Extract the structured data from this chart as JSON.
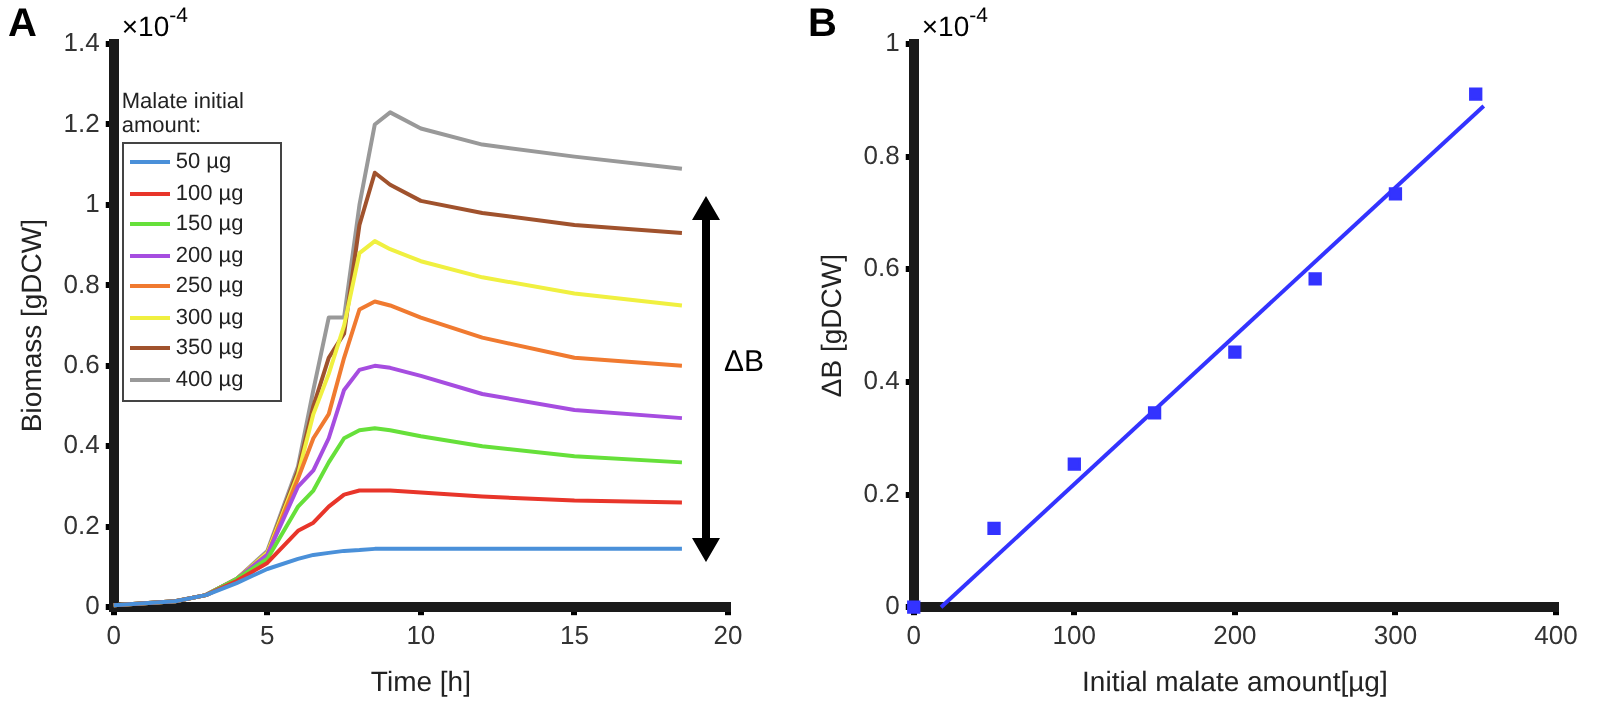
{
  "chart_data": [
    {
      "type": "line",
      "xlabel": "Time [h]",
      "ylabel": "Biomass [gDCW]",
      "legend_title": "Malate initial amount:",
      "legend": "top left",
      "marker": "none",
      "grid": false,
      "annotations": [
        "A",
        "×10$^{-4}$",
        "ΔB"
      ],
      "x": [
        0,
        2,
        3,
        4,
        5,
        6,
        6.5,
        7,
        7.5,
        8,
        8.5,
        9,
        10,
        12,
        15,
        18.5
      ],
      "xlim": [
        0,
        20
      ],
      "xticks": [
        0,
        5,
        10,
        15,
        20
      ],
      "ylim": [
        0,
        1.4
      ],
      "yticks": [
        0,
        0.2,
        0.4,
        0.6,
        0.8,
        1,
        1.2,
        1.4
      ],
      "series": [
        {
          "name": "50 µg",
          "color": "#4a90d9",
          "values": [
            0.005,
            0.015,
            0.03,
            0.06,
            0.095,
            0.12,
            0.13,
            0.135,
            0.14,
            0.142,
            0.145,
            0.145,
            0.145,
            0.145,
            0.145,
            0.145
          ]
        },
        {
          "name": "100 µg",
          "color": "#e8352a",
          "values": [
            0.005,
            0.015,
            0.03,
            0.065,
            0.11,
            0.19,
            0.21,
            0.25,
            0.28,
            0.29,
            0.29,
            0.29,
            0.285,
            0.275,
            0.265,
            0.26
          ]
        },
        {
          "name": "150 µg",
          "color": "#66e03a",
          "values": [
            0.005,
            0.015,
            0.03,
            0.07,
            0.12,
            0.25,
            0.29,
            0.36,
            0.42,
            0.44,
            0.445,
            0.44,
            0.425,
            0.4,
            0.375,
            0.36
          ]
        },
        {
          "name": "200 µg",
          "color": "#a64de0",
          "values": [
            null,
            null,
            0.03,
            0.07,
            0.13,
            0.3,
            0.34,
            0.42,
            0.54,
            0.59,
            0.6,
            0.595,
            0.575,
            0.53,
            0.49,
            0.47
          ]
        },
        {
          "name": "250 µg",
          "color": "#f07a30",
          "values": [
            0.005,
            0.015,
            0.03,
            0.07,
            0.13,
            0.32,
            0.42,
            0.48,
            0.62,
            0.74,
            0.76,
            0.75,
            0.72,
            0.67,
            0.62,
            0.6
          ]
        },
        {
          "name": "300 µg",
          "color": "#f0f040",
          "values": [
            null,
            null,
            0.03,
            0.07,
            0.135,
            0.33,
            0.48,
            0.58,
            0.7,
            0.88,
            0.91,
            0.89,
            0.86,
            0.82,
            0.78,
            0.75
          ]
        },
        {
          "name": "350 µg",
          "color": "#a0522d",
          "values": [
            0.005,
            0.015,
            0.03,
            0.07,
            0.135,
            0.34,
            0.5,
            0.62,
            0.68,
            0.95,
            1.08,
            1.05,
            1.01,
            0.98,
            0.95,
            0.93
          ]
        },
        {
          "name": "400 µg",
          "color": "#999999",
          "values": [
            0.005,
            0.015,
            0.03,
            0.07,
            0.14,
            0.35,
            0.54,
            0.72,
            0.72,
            1.0,
            1.2,
            1.23,
            1.19,
            1.15,
            1.12,
            1.09
          ]
        }
      ]
    },
    {
      "type": "scatter",
      "xlabel": "Initial malate amount[µg]",
      "ylabel": "ΔB [gDCW]",
      "marker": "square",
      "grid": false,
      "annotations": [
        "B",
        "×10$^{-4}$"
      ],
      "x": [
        0,
        50,
        100,
        150,
        200,
        250,
        300,
        350
      ],
      "xlim": [
        0,
        400
      ],
      "xticks": [
        0,
        100,
        200,
        300,
        400
      ],
      "ylim": [
        0,
        1
      ],
      "yticks": [
        0,
        0.2,
        0.4,
        0.6,
        0.8,
        1
      ],
      "series": [
        {
          "color": "#3333ff",
          "values": [
            0,
            0.14,
            0.254,
            0.345,
            0.453,
            0.583,
            0.734,
            0.911
          ]
        },
        {
          "type": "line",
          "marker": "none",
          "color": "#3333ff",
          "x": [
            17,
            355
          ],
          "values": [
            0,
            0.89
          ]
        }
      ]
    }
  ]
}
